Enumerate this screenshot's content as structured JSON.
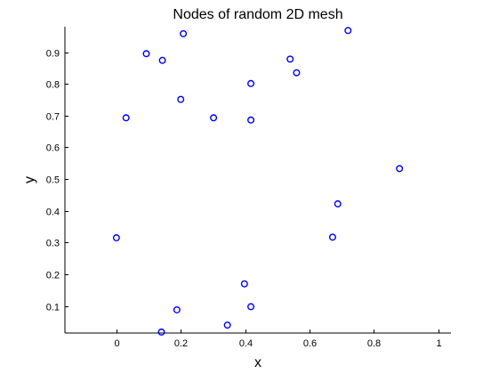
{
  "chart_data": {
    "type": "scatter",
    "title": "Nodes of random 2D mesh",
    "xlabel": "x",
    "ylabel": "y",
    "xlim": [
      -0.16,
      1.04
    ],
    "ylim": [
      0.015,
      0.98
    ],
    "xticks": [
      0,
      0.2,
      0.4,
      0.6,
      0.8,
      1
    ],
    "xtick_labels": [
      "0",
      "0.2",
      "0.4",
      "0.6",
      "0.8",
      "1"
    ],
    "yticks": [
      0.1,
      0.2,
      0.3,
      0.4,
      0.5,
      0.6,
      0.7,
      0.8,
      0.9
    ],
    "ytick_labels": [
      "0.1",
      "0.2",
      "0.3",
      "0.4",
      "0.5",
      "0.6",
      "0.7",
      "0.8",
      "0.9"
    ],
    "grid": false,
    "marker": "circle-open",
    "marker_color": "#0000ff",
    "points": [
      {
        "x": 0.0,
        "y": 0.315
      },
      {
        "x": 0.03,
        "y": 0.693
      },
      {
        "x": 0.093,
        "y": 0.895
      },
      {
        "x": 0.143,
        "y": 0.874
      },
      {
        "x": 0.2,
        "y": 0.751
      },
      {
        "x": 0.208,
        "y": 0.958
      },
      {
        "x": 0.302,
        "y": 0.693
      },
      {
        "x": 0.418,
        "y": 0.801
      },
      {
        "x": 0.418,
        "y": 0.686
      },
      {
        "x": 0.54,
        "y": 0.878
      },
      {
        "x": 0.56,
        "y": 0.835
      },
      {
        "x": 0.72,
        "y": 0.968
      },
      {
        "x": 0.88,
        "y": 0.533
      },
      {
        "x": 0.688,
        "y": 0.422
      },
      {
        "x": 0.672,
        "y": 0.317
      },
      {
        "x": 0.398,
        "y": 0.17
      },
      {
        "x": 0.418,
        "y": 0.098
      },
      {
        "x": 0.188,
        "y": 0.088
      },
      {
        "x": 0.345,
        "y": 0.04
      },
      {
        "x": 0.14,
        "y": 0.018
      }
    ]
  }
}
